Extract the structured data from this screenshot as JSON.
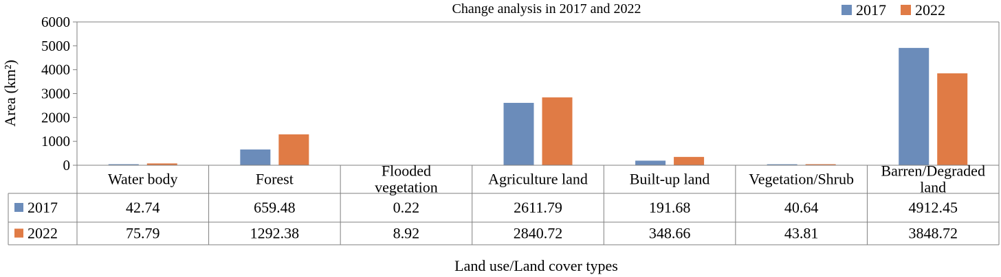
{
  "chart_data": {
    "type": "bar",
    "title": "Change analysis in 2017 and 2022",
    "xlabel": "Land use/Land cover types",
    "ylabel": "Area (km²)",
    "ylim": [
      0,
      6000
    ],
    "yticks": [
      0,
      1000,
      2000,
      3000,
      4000,
      5000,
      6000
    ],
    "legend_position": "top-right",
    "data_table": true,
    "categories": [
      "Water body",
      "Forest",
      "Flooded vegetation",
      "Agriculture land",
      "Built-up land",
      "Vegetation/Shrub",
      "Barren/Degraded land"
    ],
    "category_lines": [
      [
        "Water body"
      ],
      [
        "Forest"
      ],
      [
        "Flooded",
        "vegetation"
      ],
      [
        "Agriculture land"
      ],
      [
        "Built-up land"
      ],
      [
        "Vegetation/Shrub"
      ],
      [
        "Barren/Degraded",
        "land"
      ]
    ],
    "series": [
      {
        "name": "2017",
        "color": "#6b8cba",
        "values": [
          42.74,
          659.48,
          0.22,
          2611.79,
          191.68,
          40.64,
          4912.45
        ],
        "labels": [
          "42.74",
          "659.48",
          "0.22",
          "2611.79",
          "191.68",
          "40.64",
          "4912.45"
        ]
      },
      {
        "name": "2022",
        "color": "#e07b45",
        "values": [
          75.79,
          1292.38,
          8.92,
          2840.72,
          348.66,
          43.81,
          3848.72
        ],
        "labels": [
          "75.79",
          "1292.38",
          "8.92",
          "2840.72",
          "348.66",
          "43.81",
          "3848.72"
        ]
      }
    ]
  }
}
